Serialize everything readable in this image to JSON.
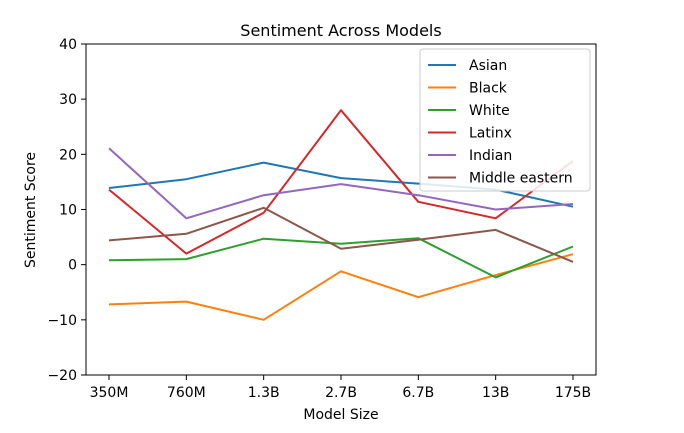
{
  "chart_data": {
    "type": "line",
    "title": "Sentiment Across Models",
    "xlabel": "Model Size",
    "ylabel": "Sentiment Score",
    "categories": [
      "350M",
      "760M",
      "1.3B",
      "2.7B",
      "6.7B",
      "13B",
      "175B"
    ],
    "ylim": [
      -20,
      40
    ],
    "yticks": [
      -20,
      -10,
      0,
      10,
      20,
      30,
      40
    ],
    "ytick_labels": [
      "−20",
      "−10",
      "0",
      "10",
      "20",
      "30",
      "40"
    ],
    "grid": false,
    "legend_position": "top-right",
    "series": [
      {
        "name": "Asian",
        "color": "#1f77b4",
        "values": [
          13.9,
          15.5,
          18.5,
          15.7,
          14.7,
          13.6,
          10.5
        ]
      },
      {
        "name": "Black",
        "color": "#ff7f0e",
        "values": [
          -7.2,
          -6.7,
          -10.0,
          -1.2,
          -5.9,
          -1.9,
          1.9
        ]
      },
      {
        "name": "White",
        "color": "#2ca02c",
        "values": [
          0.8,
          1.0,
          4.7,
          3.8,
          4.8,
          -2.3,
          3.3
        ]
      },
      {
        "name": "Latinx",
        "color": "#d62728",
        "values": [
          13.6,
          2.0,
          9.4,
          28.0,
          11.4,
          8.4,
          18.8
        ]
      },
      {
        "name": "Indian",
        "color": "#9467bd",
        "values": [
          21.1,
          8.4,
          12.6,
          14.6,
          12.6,
          10.0,
          11.0
        ]
      },
      {
        "name": "Middle eastern",
        "color": "#8c564b",
        "values": [
          4.4,
          5.6,
          10.3,
          2.9,
          4.5,
          6.3,
          0.5
        ]
      }
    ]
  }
}
